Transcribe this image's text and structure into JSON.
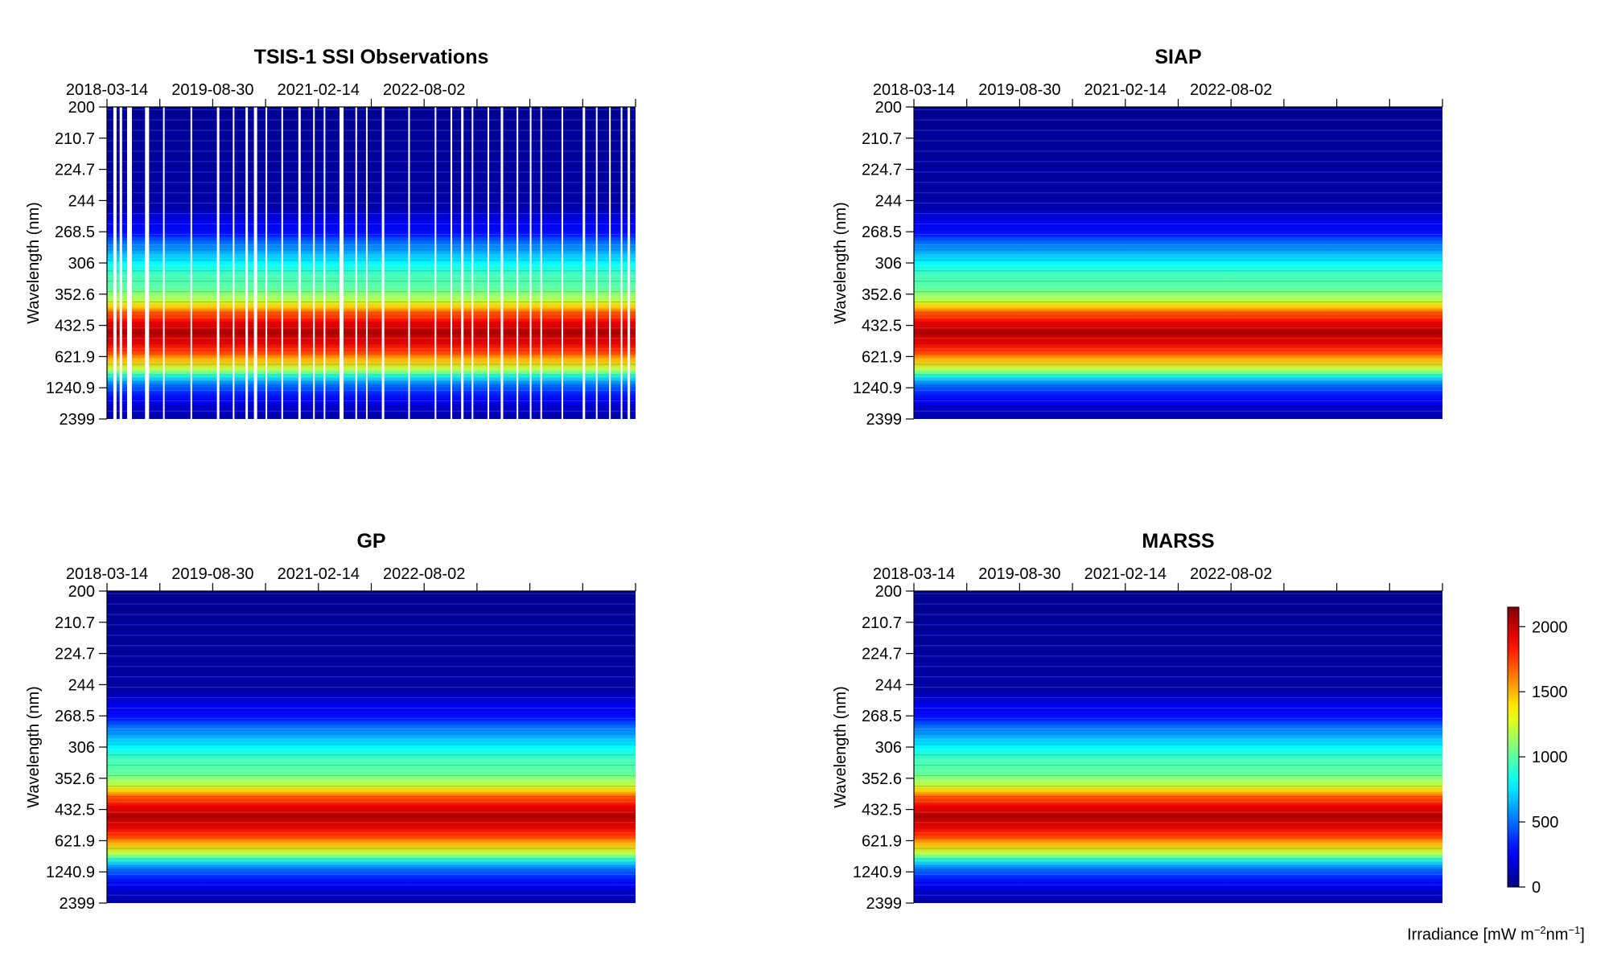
{
  "chart_data": [
    {
      "type": "heatmap",
      "title": "TSIS-1 SSI Observations",
      "xlabel": "",
      "ylabel": "Wavelength (nm)",
      "x_tick_labels": [
        "2018-03-14",
        "2019-08-30",
        "2021-02-14",
        "2022-08-02"
      ],
      "y_tick_labels": [
        "200",
        "210.7",
        "224.7",
        "244",
        "268.5",
        "306",
        "352.6",
        "432.5",
        "621.9",
        "1240.9",
        "2399"
      ],
      "has_gaps": true
    },
    {
      "type": "heatmap",
      "title": "SIAP",
      "xlabel": "",
      "ylabel": "Wavelength (nm)",
      "x_tick_labels": [
        "2018-03-14",
        "2019-08-30",
        "2021-02-14",
        "2022-08-02"
      ],
      "y_tick_labels": [
        "200",
        "210.7",
        "224.7",
        "244",
        "268.5",
        "306",
        "352.6",
        "432.5",
        "621.9",
        "1240.9",
        "2399"
      ],
      "has_gaps": false
    },
    {
      "type": "heatmap",
      "title": "GP",
      "xlabel": "",
      "ylabel": "Wavelength (nm)",
      "x_tick_labels": [
        "2018-03-14",
        "2019-08-30",
        "2021-02-14",
        "2022-08-02"
      ],
      "y_tick_labels": [
        "200",
        "210.7",
        "224.7",
        "244",
        "268.5",
        "306",
        "352.6",
        "432.5",
        "621.9",
        "1240.9",
        "2399"
      ],
      "has_gaps": false
    },
    {
      "type": "heatmap",
      "title": "MARSS",
      "xlabel": "",
      "ylabel": "Wavelength (nm)",
      "x_tick_labels": [
        "2018-03-14",
        "2019-08-30",
        "2021-02-14",
        "2022-08-02"
      ],
      "y_tick_labels": [
        "200",
        "210.7",
        "224.7",
        "244",
        "268.5",
        "306",
        "352.6",
        "432.5",
        "621.9",
        "1240.9",
        "2399"
      ],
      "has_gaps": false
    }
  ],
  "spectrum_profile": [
    [
      0.0,
      50
    ],
    [
      0.14,
      60
    ],
    [
      0.32,
      90
    ],
    [
      0.37,
      250
    ],
    [
      0.41,
      300
    ],
    [
      0.42,
      420
    ],
    [
      0.44,
      520
    ],
    [
      0.47,
      650
    ],
    [
      0.5,
      800
    ],
    [
      0.54,
      950
    ],
    [
      0.58,
      1000
    ],
    [
      0.62,
      1200
    ],
    [
      0.64,
      1450
    ],
    [
      0.66,
      1700
    ],
    [
      0.69,
      1900
    ],
    [
      0.72,
      2050
    ],
    [
      0.75,
      1950
    ],
    [
      0.78,
      1800
    ],
    [
      0.81,
      1500
    ],
    [
      0.84,
      1200
    ],
    [
      0.86,
      900
    ],
    [
      0.88,
      600
    ],
    [
      0.91,
      380
    ],
    [
      0.94,
      250
    ],
    [
      0.97,
      140
    ],
    [
      1.0,
      100
    ]
  ],
  "colorbar": {
    "min": 0,
    "max": 2150,
    "tick_values": [
      0,
      500,
      1000,
      1500,
      2000
    ],
    "tick_labels": [
      "0",
      "500",
      "1000",
      "1500",
      "2000"
    ],
    "label_prefix": "Irradiance [mW m",
    "label_exp1": "−2",
    "label_mid": "nm",
    "label_exp2": "−1",
    "label_suffix": "]"
  }
}
